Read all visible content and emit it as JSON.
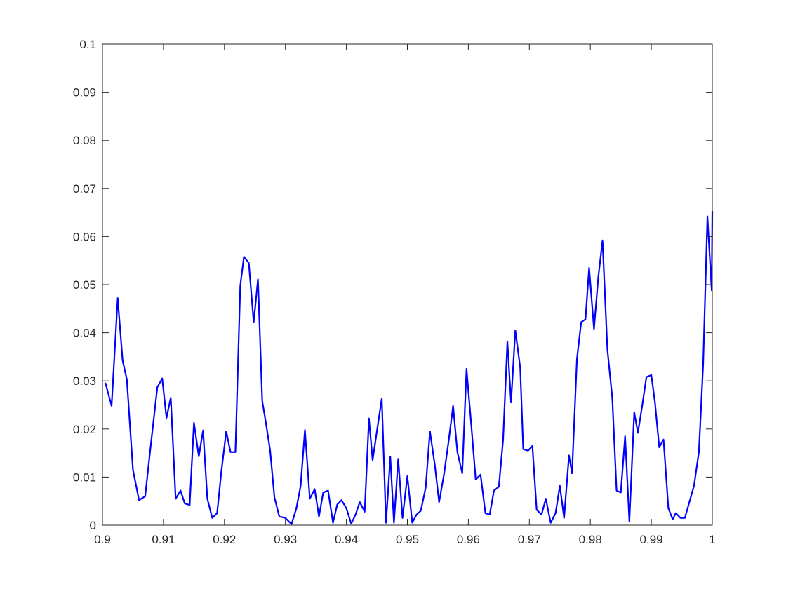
{
  "chart_data": {
    "type": "line",
    "title": "",
    "xlabel": "",
    "ylabel": "",
    "xlim": [
      0.9,
      1.0
    ],
    "ylim": [
      0,
      0.1
    ],
    "grid": false,
    "xticks": [
      "0.9",
      "0.91",
      "0.92",
      "0.93",
      "0.94",
      "0.95",
      "0.96",
      "0.97",
      "0.98",
      "0.99",
      "1"
    ],
    "yticks": [
      "0",
      "0.01",
      "0.02",
      "0.03",
      "0.04",
      "0.05",
      "0.06",
      "0.07",
      "0.08",
      "0.09",
      "0.1"
    ],
    "series": [
      {
        "color": "#0000ff",
        "points": [
          [
            0.9005,
            0.0295
          ],
          [
            0.9015,
            0.0248
          ],
          [
            0.9025,
            0.0472
          ],
          [
            0.9033,
            0.0343
          ],
          [
            0.904,
            0.0303
          ],
          [
            0.905,
            0.0115
          ],
          [
            0.906,
            0.0052
          ],
          [
            0.907,
            0.006
          ],
          [
            0.908,
            0.0175
          ],
          [
            0.909,
            0.0287
          ],
          [
            0.9098,
            0.0305
          ],
          [
            0.9105,
            0.0223
          ],
          [
            0.9112,
            0.0265
          ],
          [
            0.912,
            0.0055
          ],
          [
            0.9128,
            0.0072
          ],
          [
            0.9135,
            0.0045
          ],
          [
            0.9143,
            0.0042
          ],
          [
            0.915,
            0.0213
          ],
          [
            0.9158,
            0.0143
          ],
          [
            0.9165,
            0.0197
          ],
          [
            0.9172,
            0.0055
          ],
          [
            0.918,
            0.0015
          ],
          [
            0.9188,
            0.0025
          ],
          [
            0.9195,
            0.0112
          ],
          [
            0.9203,
            0.0195
          ],
          [
            0.921,
            0.0152
          ],
          [
            0.9218,
            0.0152
          ],
          [
            0.9226,
            0.0498
          ],
          [
            0.9232,
            0.0558
          ],
          [
            0.924,
            0.0545
          ],
          [
            0.9248,
            0.0422
          ],
          [
            0.9255,
            0.0511
          ],
          [
            0.9262,
            0.0258
          ],
          [
            0.9268,
            0.0213
          ],
          [
            0.9275,
            0.0155
          ],
          [
            0.9282,
            0.0058
          ],
          [
            0.929,
            0.0018
          ],
          [
            0.93,
            0.0015
          ],
          [
            0.931,
            0.0002
          ],
          [
            0.9318,
            0.0035
          ],
          [
            0.9325,
            0.0082
          ],
          [
            0.9332,
            0.0198
          ],
          [
            0.934,
            0.0055
          ],
          [
            0.9348,
            0.0075
          ],
          [
            0.9355,
            0.0018
          ],
          [
            0.9362,
            0.0068
          ],
          [
            0.937,
            0.0072
          ],
          [
            0.9378,
            0.0005
          ],
          [
            0.9385,
            0.0043
          ],
          [
            0.9392,
            0.0052
          ],
          [
            0.94,
            0.0035
          ],
          [
            0.9408,
            0.0003
          ],
          [
            0.9415,
            0.0022
          ],
          [
            0.9422,
            0.0048
          ],
          [
            0.943,
            0.0028
          ],
          [
            0.9437,
            0.0222
          ],
          [
            0.9443,
            0.0135
          ],
          [
            0.945,
            0.0195
          ],
          [
            0.9458,
            0.0263
          ],
          [
            0.9465,
            0.0005
          ],
          [
            0.9472,
            0.0142
          ],
          [
            0.9478,
            0.0005
          ],
          [
            0.9485,
            0.0138
          ],
          [
            0.9492,
            0.0015
          ],
          [
            0.95,
            0.0102
          ],
          [
            0.9508,
            0.0005
          ],
          [
            0.9515,
            0.0022
          ],
          [
            0.9522,
            0.003
          ],
          [
            0.953,
            0.0078
          ],
          [
            0.9537,
            0.0195
          ],
          [
            0.9545,
            0.0125
          ],
          [
            0.9552,
            0.0048
          ],
          [
            0.956,
            0.0105
          ],
          [
            0.9568,
            0.0178
          ],
          [
            0.9575,
            0.0248
          ],
          [
            0.9582,
            0.0152
          ],
          [
            0.959,
            0.0108
          ],
          [
            0.9597,
            0.0325
          ],
          [
            0.9605,
            0.0205
          ],
          [
            0.9612,
            0.0095
          ],
          [
            0.962,
            0.0105
          ],
          [
            0.9628,
            0.0025
          ],
          [
            0.9635,
            0.0022
          ],
          [
            0.9642,
            0.0072
          ],
          [
            0.965,
            0.008
          ],
          [
            0.9657,
            0.0178
          ],
          [
            0.9664,
            0.0382
          ],
          [
            0.967,
            0.0255
          ],
          [
            0.9677,
            0.0405
          ],
          [
            0.9685,
            0.0328
          ],
          [
            0.969,
            0.0158
          ],
          [
            0.9698,
            0.0155
          ],
          [
            0.9705,
            0.0165
          ],
          [
            0.9712,
            0.0032
          ],
          [
            0.972,
            0.0022
          ],
          [
            0.9727,
            0.0055
          ],
          [
            0.9735,
            0.0005
          ],
          [
            0.9743,
            0.0025
          ],
          [
            0.975,
            0.0082
          ],
          [
            0.9757,
            0.0015
          ],
          [
            0.9765,
            0.0145
          ],
          [
            0.977,
            0.0108
          ],
          [
            0.9778,
            0.0345
          ],
          [
            0.9785,
            0.0422
          ],
          [
            0.9792,
            0.0428
          ],
          [
            0.9798,
            0.0535
          ],
          [
            0.9806,
            0.0408
          ],
          [
            0.9813,
            0.0515
          ],
          [
            0.982,
            0.0592
          ],
          [
            0.9828,
            0.0365
          ],
          [
            0.9836,
            0.0265
          ],
          [
            0.9843,
            0.0072
          ],
          [
            0.985,
            0.0068
          ],
          [
            0.9857,
            0.0185
          ],
          [
            0.9864,
            0.0008
          ],
          [
            0.9872,
            0.0235
          ],
          [
            0.9878,
            0.0192
          ],
          [
            0.9885,
            0.0248
          ],
          [
            0.9892,
            0.0308
          ],
          [
            0.99,
            0.0312
          ],
          [
            0.9906,
            0.0255
          ],
          [
            0.9913,
            0.0162
          ],
          [
            0.992,
            0.0178
          ],
          [
            0.9928,
            0.0035
          ],
          [
            0.9935,
            0.0012
          ],
          [
            0.994,
            0.0025
          ],
          [
            0.9948,
            0.0015
          ],
          [
            0.9955,
            0.0015
          ],
          [
            0.997,
            0.0082
          ],
          [
            0.9978,
            0.0152
          ],
          [
            0.9985,
            0.0335
          ],
          [
            0.9992,
            0.0642
          ],
          [
            0.9999,
            0.0488
          ],
          [
            1.0,
            0.0652
          ]
        ]
      }
    ]
  }
}
